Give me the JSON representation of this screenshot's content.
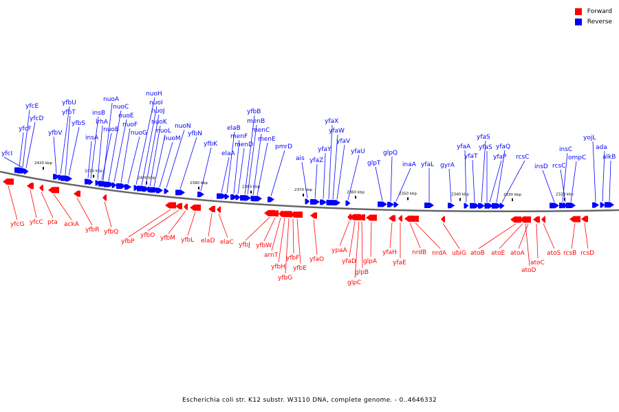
{
  "legend": {
    "forward": {
      "label": "Forward",
      "color": "#ff0000"
    },
    "reverse": {
      "label": "Reverse",
      "color": "#0000ff"
    }
  },
  "caption": "Escherichia coli str. K12 substr. W3110 DNA, complete genome. - 0..4646332",
  "axis_color": "#666666",
  "ticks": [
    "2420 kbp",
    "2410 kbp",
    "2400 kbp",
    "2390 kbp",
    "2380 kbp",
    "2370 kbp",
    "2360 kbp",
    "2350 kbp",
    "2340 kbp",
    "2330 kbp",
    "2320 kbp"
  ],
  "reverse_genes": [
    "yfcI",
    "yfcE",
    "yfcD",
    "yfcF",
    "yfbV",
    "yfbU",
    "yfbT",
    "yfbS",
    "insB",
    "nuoA",
    "insA",
    "lrhA",
    "nuoC",
    "nuoB",
    "nuoE",
    "nuoF",
    "nuoG",
    "nuoH",
    "nuoI",
    "nuoJ",
    "nuoK",
    "nuoL",
    "nuoM",
    "nuoN",
    "yfbN",
    "yfbK",
    "elaB",
    "elaA",
    "menF",
    "menD",
    "yfbB",
    "menB",
    "menC",
    "menE",
    "pmrD",
    "ais",
    "yfaZ",
    "yfaY",
    "yfaX",
    "yfaW",
    "yfaV",
    "yfaU",
    "glpT",
    "glpQ",
    "inaA",
    "yfaL",
    "gyrA",
    "yfaA",
    "yfaT",
    "yfaS",
    "yfaS",
    "yfaQ",
    "yfaP",
    "rcsC",
    "insD",
    "insC",
    "rcsC",
    "ompC",
    "yojL",
    "ada",
    "alkB"
  ],
  "forward_genes": [
    "yfcG",
    "yfcC",
    "pta",
    "ackA",
    "yfbR",
    "yfbQ",
    "yfbP",
    "yfbO",
    "yfbM",
    "yfbL",
    "elaD",
    "elaC",
    "yfbJ",
    "yfbW",
    "arnT",
    "yfbH",
    "yfbG",
    "yfbF",
    "yfbE",
    "yfaO",
    "ypaA",
    "yfaD",
    "glpB",
    "glpC",
    "glpA",
    "yfaH",
    "yfaE",
    "nrdB",
    "nrdA",
    "ubiG",
    "atoB",
    "atoE",
    "atoA",
    "atoD",
    "atoC",
    "atoS",
    "rcsB",
    "rcsD"
  ]
}
